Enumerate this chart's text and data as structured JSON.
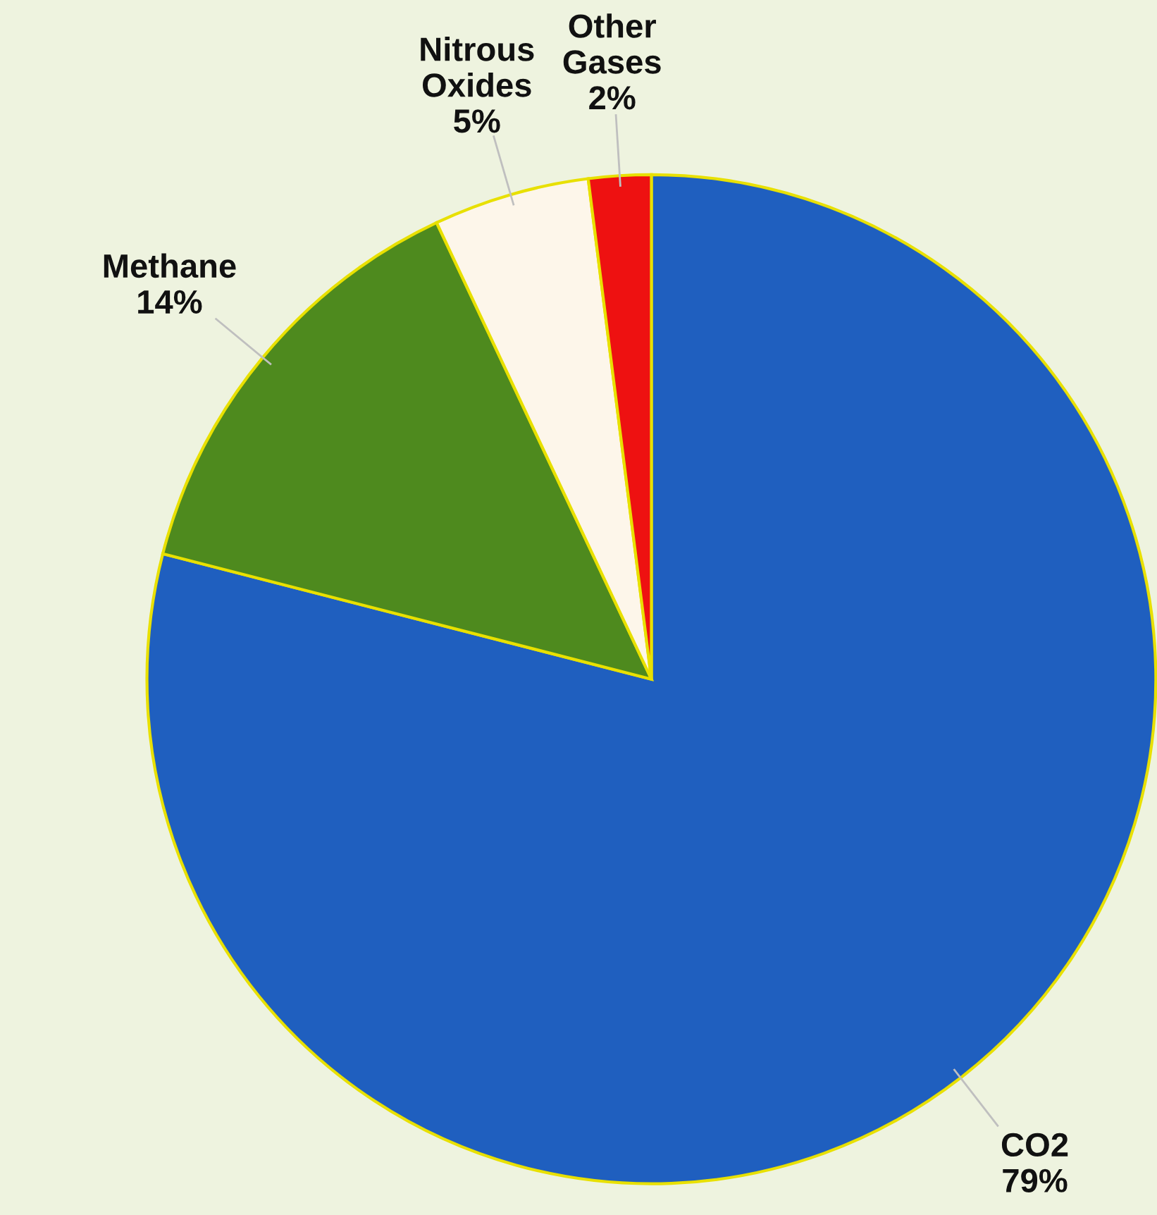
{
  "chart_data": {
    "type": "pie",
    "categories": [
      "CO2",
      "Methane",
      "Nitrous Oxides",
      "Other Gases"
    ],
    "values": [
      79,
      14,
      5,
      2
    ],
    "colors": [
      "#1f5fbf",
      "#4e8a1e",
      "#fdf6ea",
      "#ee1111"
    ],
    "value_labels": [
      "79%",
      "14%",
      "5%",
      "2%"
    ],
    "legend": false
  }
}
